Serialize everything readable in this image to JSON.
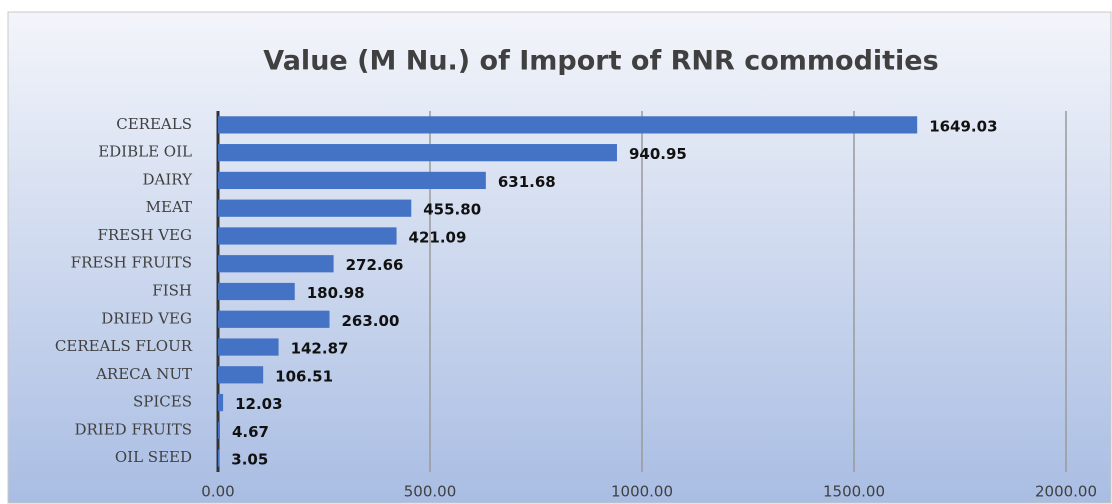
{
  "chart_data": {
    "type": "bar",
    "orientation": "horizontal",
    "title": "Value (M Nu.) of Import of RNR commodities",
    "categories": [
      "CEREALS",
      "EDIBLE OIL",
      "DAIRY",
      "MEAT",
      "FRESH VEG",
      "FRESH FRUITS",
      "FISH",
      "DRIED VEG",
      "CEREALS FLOUR",
      "ARECA NUT",
      "SPICES",
      "DRIED FRUITS",
      "OIL SEED"
    ],
    "values": [
      1649.03,
      940.95,
      631.68,
      455.8,
      421.09,
      272.66,
      180.98,
      263.0,
      142.87,
      106.51,
      12.03,
      4.67,
      3.05
    ],
    "value_labels": [
      "1649.03",
      "940.95",
      "631.68",
      "455.80",
      "421.09",
      "272.66",
      "180.98",
      "263.00",
      "142.87",
      "106.51",
      "12.03",
      "4.67",
      "3.05"
    ],
    "color": "#4472c4",
    "xlim": [
      0,
      2000
    ],
    "xticks": [
      {
        "value": 0,
        "label": "0.00"
      },
      {
        "value": 500,
        "label": "500.00"
      },
      {
        "value": 1000,
        "label": "1000.00"
      },
      {
        "value": 1500,
        "label": "1500.00"
      },
      {
        "value": 2000,
        "label": "2000.00"
      }
    ],
    "grid": true
  }
}
